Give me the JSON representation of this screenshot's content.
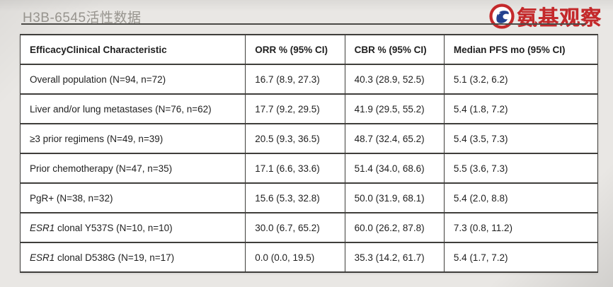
{
  "page": {
    "title": "H3B-6545活性数据"
  },
  "logo": {
    "text": "氨基观察",
    "brand_red": "#c4292b",
    "brand_blue": "#24418e",
    "icon": "swirl-ring-logo-icon"
  },
  "table": {
    "headers": [
      "EfficacyClinical Characteristic",
      "ORR % (95% CI)",
      "CBR % (95% CI)",
      "Median PFS mo (95% CI)"
    ],
    "rows": [
      {
        "label_italic": "",
        "label": "Overall population (N=94, n=72)",
        "orr": "16.7 (8.9, 27.3)",
        "cbr": "40.3 (28.9, 52.5)",
        "pfs": "5.1 (3.2, 6.2)"
      },
      {
        "label_italic": "",
        "label": "Liver and/or lung metastases (N=76, n=62)",
        "orr": "17.7 (9.2, 29.5)",
        "cbr": "41.9 (29.5, 55.2)",
        "pfs": "5.4 (1.8, 7.2)"
      },
      {
        "label_italic": "",
        "label": "≥3 prior regimens (N=49, n=39)",
        "orr": "20.5 (9.3, 36.5)",
        "cbr": "48.7 (32.4, 65.2)",
        "pfs": "5.4 (3.5, 7.3)"
      },
      {
        "label_italic": "",
        "label": "Prior chemotherapy (N=47, n=35)",
        "orr": "17.1 (6.6, 33.6)",
        "cbr": "51.4 (34.0, 68.6)",
        "pfs": "5.5 (3.6, 7.3)"
      },
      {
        "label_italic": "",
        "label": "PgR+ (N=38, n=32)",
        "orr": "15.6 (5.3, 32.8)",
        "cbr": "50.0 (31.9, 68.1)",
        "pfs": "5.4 (2.0, 8.8)"
      },
      {
        "label_italic": "ESR1",
        "label": "clonal Y537S (N=10, n=10)",
        "orr": "30.0 (6.7, 65.2)",
        "cbr": "60.0 (26.2, 87.8)",
        "pfs": "7.3 (0.8, 11.2)"
      },
      {
        "label_italic": "ESR1",
        "label": "clonal D538G (N=19, n=17)",
        "orr": "0.0 (0.0, 19.5)",
        "cbr": "35.3 (14.2, 61.7)",
        "pfs": "5.4 (1.7, 7.2)"
      }
    ]
  }
}
